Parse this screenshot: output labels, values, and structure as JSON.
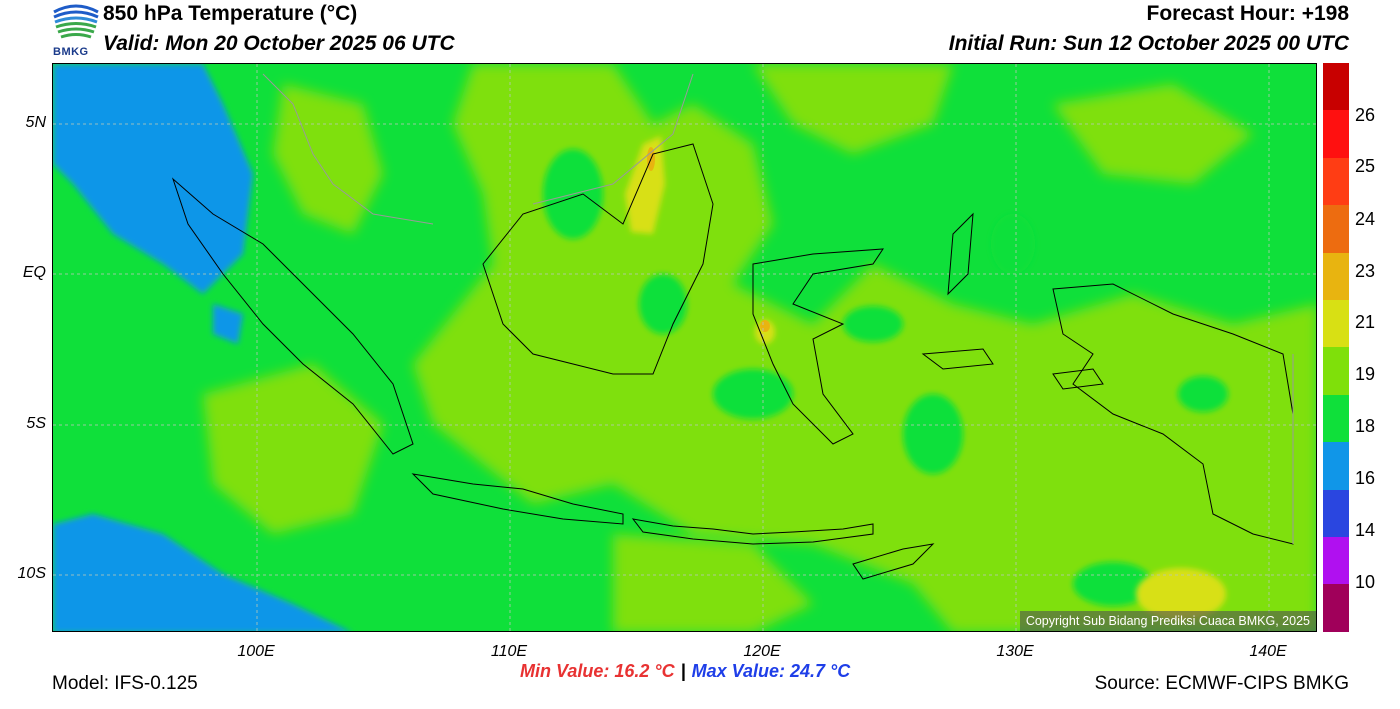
{
  "header": {
    "logo_text": "BMKG",
    "title": "850 hPa Temperature (°C)",
    "valid": "Valid: Mon 20 October 2025 06 UTC",
    "forecast_hour": "Forecast Hour: +198",
    "initial_run": "Initial Run: Sun 12 October 2025 00 UTC"
  },
  "map": {
    "lat_labels": [
      "5N",
      "EQ",
      "5S",
      "10S"
    ],
    "lon_labels": [
      "100E",
      "110E",
      "120E",
      "130E",
      "140E"
    ],
    "copyright": "Copyright Sub Bidang Prediksi Cuaca BMKG, 2025"
  },
  "colorbar": {
    "labels": [
      "26",
      "25",
      "24",
      "23",
      "21",
      "19",
      "18",
      "16",
      "14",
      "10"
    ],
    "colors": [
      "#c80000",
      "#ff1010",
      "#ff3d14",
      "#ed6c10",
      "#e8b410",
      "#d8e014",
      "#7fe00a",
      "#0fe03a",
      "#1096e8",
      "#2a46e0",
      "#b010f0",
      "#a0005a"
    ]
  },
  "stats": {
    "min": "Min Value: 16.2 °C",
    "max": "Max Value: 24.7 °C"
  },
  "footer": {
    "model": "Model: IFS-0.125",
    "source": "Source: ECMWF-CIPS BMKG"
  }
}
